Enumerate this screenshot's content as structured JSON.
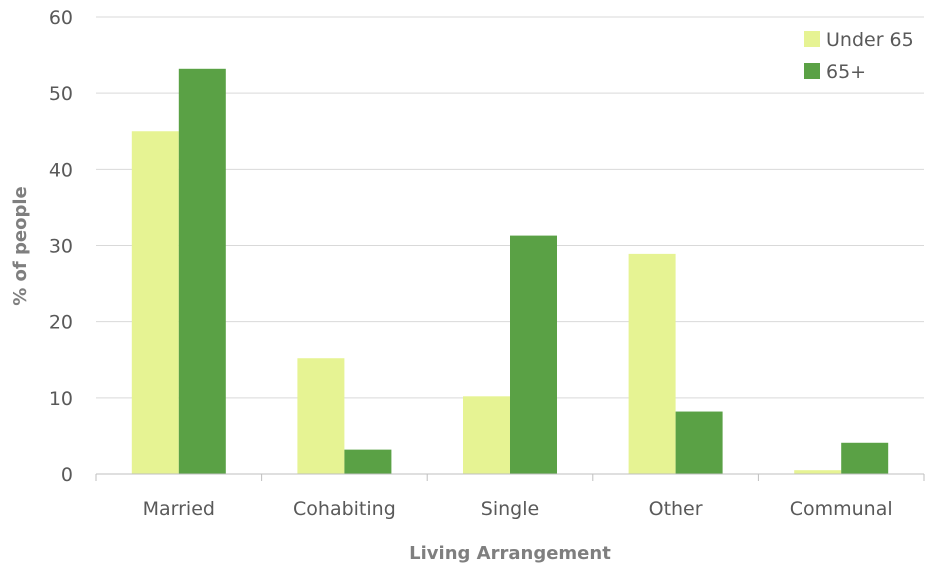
{
  "chart_data": {
    "type": "bar",
    "title": "",
    "xlabel": "Living Arrangement",
    "ylabel": "% of people",
    "categories": [
      "Married",
      "Cohabiting",
      "Single",
      "Other",
      "Communal"
    ],
    "series": [
      {
        "name": "Under 65",
        "color": "#e6f393",
        "values": [
          45,
          15.2,
          10.2,
          28.9,
          0.5
        ]
      },
      {
        "name": "65+",
        "color": "#5aa145",
        "values": [
          53.2,
          3.2,
          31.3,
          8.2,
          4.1
        ]
      }
    ],
    "ylim": [
      0,
      60
    ],
    "yticks": [
      0,
      10,
      20,
      30,
      40,
      50,
      60
    ],
    "grid": true,
    "legend_position": "top-right",
    "colors": {
      "gridline": "#d9d9d9",
      "axis": "#bfbfbf",
      "tick_text": "#595959",
      "axis_title": "#7f7f7f"
    }
  }
}
